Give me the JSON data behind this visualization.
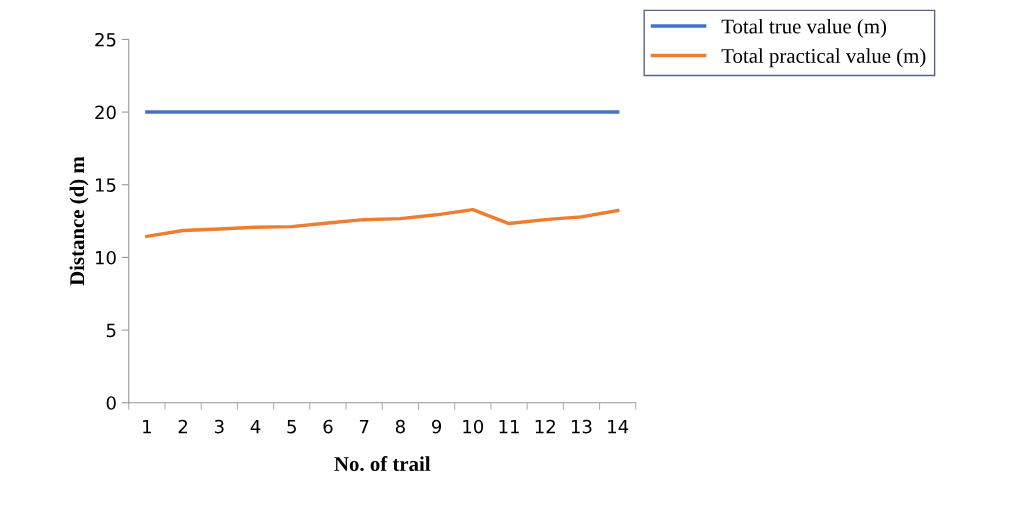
{
  "chart_data": {
    "type": "line",
    "xlabel": "No. of trail",
    "ylabel": "Distance (d) m",
    "categories": [
      "1",
      "2",
      "3",
      "4",
      "5",
      "6",
      "7",
      "8",
      "9",
      "10",
      "11",
      "12",
      "13",
      "14"
    ],
    "series": [
      {
        "name": "Total true value (m)",
        "color": "#4472c4",
        "values": [
          20,
          20,
          20,
          20,
          20,
          20,
          20,
          20,
          20,
          20,
          20,
          20,
          20,
          20
        ]
      },
      {
        "name": "Total practical value (m)",
        "color": "#ed7d31",
        "values": [
          11.45,
          11.85,
          11.96,
          12.07,
          12.12,
          12.37,
          12.6,
          12.67,
          12.93,
          13.29,
          12.33,
          12.6,
          12.79,
          13.22
        ]
      }
    ],
    "ylim": [
      0,
      25
    ],
    "yticks": [
      0,
      5,
      10,
      15,
      20,
      25
    ],
    "grid": false,
    "legend": "top right",
    "marker": "none",
    "line_style": "solid"
  }
}
